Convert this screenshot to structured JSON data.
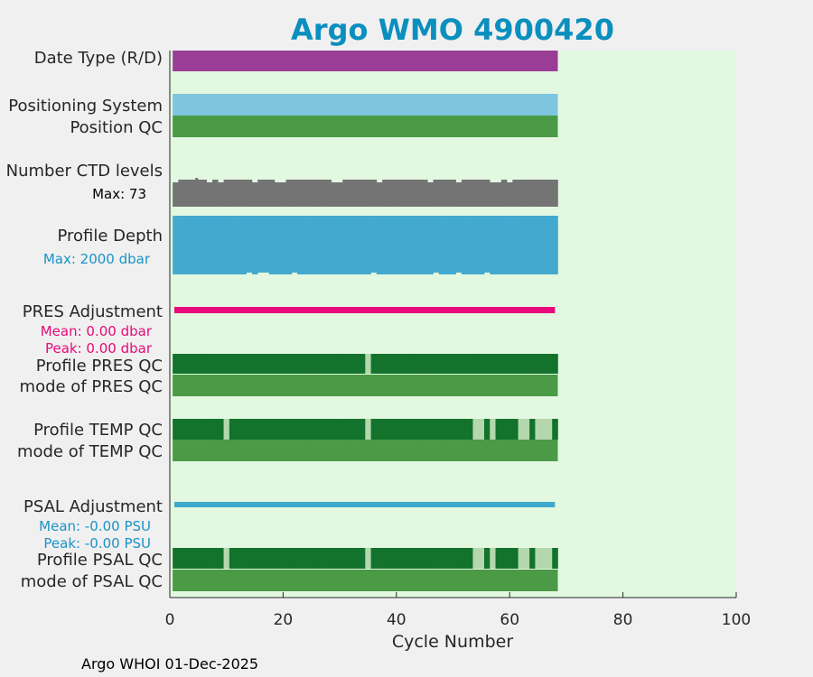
{
  "chart_data": {
    "type": "bar",
    "title": "Argo WMO 4900420",
    "xlabel": "Cycle Number",
    "xlim": [
      0,
      100
    ],
    "xticks": [
      0,
      20,
      40,
      60,
      80,
      100
    ],
    "n_cycles": 68,
    "footer": "Argo WHOI 01-Dec-2025",
    "rows": [
      {
        "key": "date_type",
        "label": "Date Type (R/D)",
        "color": "#9a3d96"
      },
      {
        "key": "positioning_system",
        "label": "Positioning System",
        "color": "#7ec5df"
      },
      {
        "key": "position_qc",
        "label": "Position QC",
        "color": "#4a9a46"
      },
      {
        "key": "number_ctd_levels",
        "label": "Number CTD levels",
        "sublabel": "Max: 73",
        "color": "#747474"
      },
      {
        "key": "profile_depth",
        "label": "Profile Depth",
        "sublabel": "Max: 2000 dbar",
        "color": "#43a9cf",
        "sublabel_color": "#1a93c6"
      },
      {
        "key": "pres_adjustment",
        "label": "PRES Adjustment",
        "mean": "Mean: 0.00 dbar",
        "peak": "Peak: 0.00 dbar",
        "color": "#e8097a"
      },
      {
        "key": "profile_pres_qc",
        "label": "Profile PRES QC",
        "dark": "#13722b",
        "light": "#b4d7ae",
        "light_cycles": [
          35
        ]
      },
      {
        "key": "mode_pres_qc",
        "label": "mode of PRES QC",
        "color": "#4a9a46"
      },
      {
        "key": "profile_temp_qc",
        "label": "Profile TEMP QC",
        "dark": "#13722b",
        "light": "#b4d7ae",
        "light_cycles": [
          10,
          35,
          54,
          55,
          57,
          62,
          63,
          65,
          66,
          67
        ]
      },
      {
        "key": "mode_temp_qc",
        "label": "mode of TEMP QC",
        "color": "#4a9a46"
      },
      {
        "key": "psal_adjustment",
        "label": "PSAL Adjustment",
        "mean": "Mean: -0.00 PSU",
        "peak": "Peak: -0.00 PSU",
        "color": "#3fa9ce"
      },
      {
        "key": "profile_psal_qc",
        "label": "Profile PSAL QC",
        "dark": "#13722b",
        "light": "#b4d7ae",
        "light_cycles": [
          10,
          35,
          54,
          55,
          57,
          62,
          63,
          65,
          66,
          67
        ]
      },
      {
        "key": "mode_psal_qc",
        "label": "mode of PSAL QC",
        "color": "#4a9a46"
      }
    ],
    "ctd_levels_short_cycles": [
      1,
      7,
      9,
      15,
      19,
      20,
      29,
      30,
      37,
      46,
      51,
      57,
      58,
      60
    ],
    "depth_short_cycles": [
      14,
      16,
      17,
      22,
      36,
      47,
      51,
      56
    ]
  },
  "colors": {
    "plot_background": "#e3f8e1",
    "figure_background": "#f0f0f0",
    "title": "#0a8fbe"
  }
}
